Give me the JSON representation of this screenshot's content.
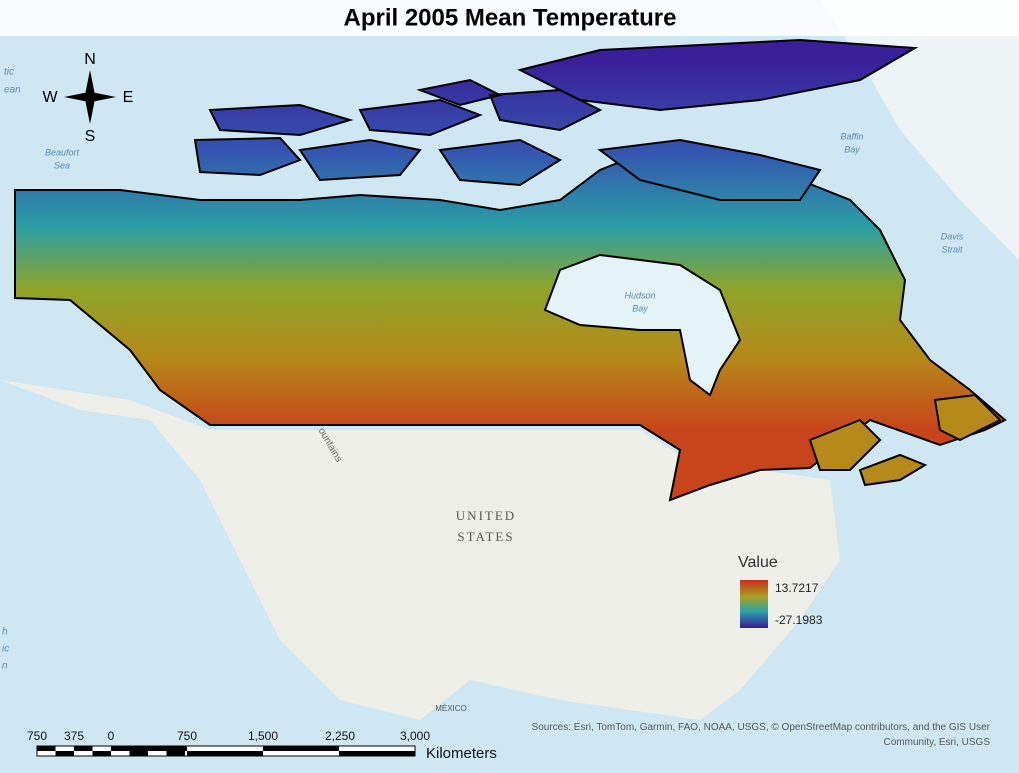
{
  "title": "April 2005 Mean Temperature",
  "compass": {
    "n": "N",
    "s": "S",
    "e": "E",
    "w": "W"
  },
  "places": [
    {
      "lines": [
        "tic",
        "ean"
      ]
    },
    {
      "lines": [
        "Beaufort",
        "Sea"
      ]
    },
    {
      "lines": [
        "Baffin",
        "Bay"
      ]
    },
    {
      "lines": [
        "Davis",
        "Strait"
      ]
    },
    {
      "lines": [
        "Hudson",
        "Bay"
      ]
    },
    {
      "lines": [
        "ountains"
      ]
    },
    {
      "lines": [
        "UNITED",
        "STATES"
      ]
    },
    {
      "lines": [
        "MÉXICO"
      ]
    },
    {
      "lines": [
        "h",
        "ic",
        "n"
      ]
    }
  ],
  "legend": {
    "title": "Value",
    "max": 13.7217,
    "min": -27.1983
  },
  "scale_bar": {
    "labels": [
      "750",
      "375",
      "0",
      "750",
      "1,500",
      "2,250",
      "3,000"
    ],
    "unit": "Kilometers"
  },
  "sources": "Sources: Esri, TomTom, Garmin, FAO, NOAA, USGS, © OpenStreetMap contributors, and the GIS User Community, Esri, USGS"
}
